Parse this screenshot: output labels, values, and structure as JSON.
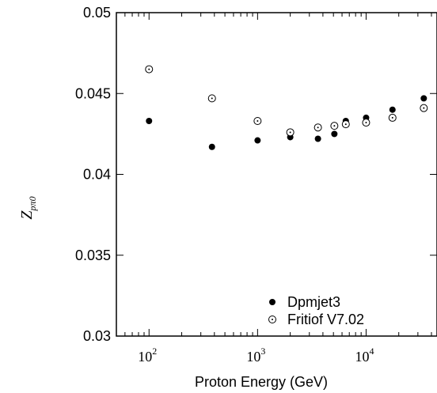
{
  "chart_data": {
    "type": "scatter",
    "title": "",
    "xlabel": "Proton Energy (GeV)",
    "ylabel": "Z",
    "ylabel_subscript": "pπ0",
    "xscale": "log",
    "xlim": [
      50,
      45000
    ],
    "ylim": [
      0.03,
      0.05
    ],
    "yticks": [
      "0.03",
      "0.035",
      "0.04",
      "0.045",
      "0.05"
    ],
    "xticks": [
      {
        "base": "10",
        "exp": "2",
        "value": 100
      },
      {
        "base": "10",
        "exp": "3",
        "value": 1000
      },
      {
        "base": "10",
        "exp": "4",
        "value": 10000
      }
    ],
    "legend_position": "bottom-right",
    "series": [
      {
        "name": "Dpmjet3",
        "marker": "filled-circle",
        "color": "#000000",
        "x": [
          100,
          380,
          1000,
          2000,
          3600,
          5100,
          6500,
          10000,
          17500,
          34000
        ],
        "y": [
          0.0433,
          0.0417,
          0.0421,
          0.0423,
          0.0422,
          0.0425,
          0.0433,
          0.0435,
          0.044,
          0.0447
        ]
      },
      {
        "name": "Fritiof V7.02",
        "marker": "open-circle-dot",
        "color": "#000000",
        "x": [
          100,
          380,
          1000,
          2000,
          3600,
          5100,
          6500,
          10000,
          17500,
          34000
        ],
        "y": [
          0.0465,
          0.0447,
          0.0433,
          0.0426,
          0.0429,
          0.043,
          0.0431,
          0.0432,
          0.0435,
          0.0441
        ]
      }
    ]
  }
}
